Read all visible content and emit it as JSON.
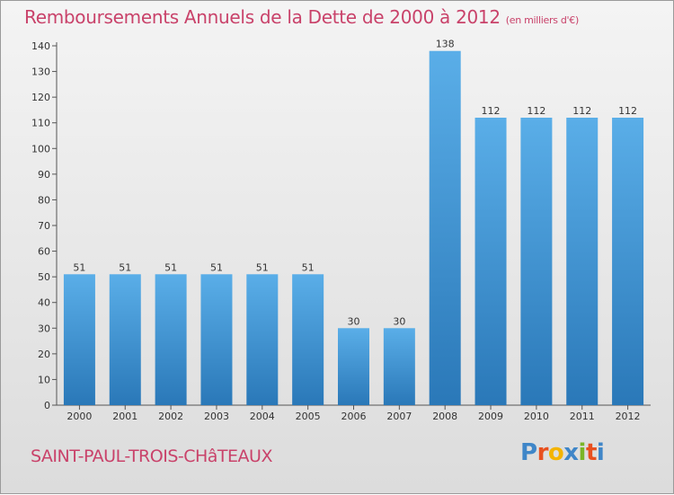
{
  "header": {
    "title": "Remboursements Annuels de la Dette de 2000 à 2012",
    "unit": "(en milliers d'€)"
  },
  "commune": "SAINT-PAUL-TROIS-CHâTEAUX",
  "logo": {
    "letters": [
      "P",
      "r",
      "o",
      "x",
      "i",
      "t",
      "i"
    ]
  },
  "colors": {
    "title": "#c9426a",
    "bar_top": "#5aaee8",
    "bar_bottom": "#2a78b8",
    "logo_letters": [
      "#3f86c8",
      "#e8501f",
      "#f4b400",
      "#3f86c8",
      "#7ab526",
      "#e8501f",
      "#3f86c8"
    ]
  },
  "chart_data": {
    "type": "bar",
    "title": "Remboursements Annuels de la Dette de 2000 à 2012",
    "categories": [
      "2000",
      "2001",
      "2002",
      "2003",
      "2004",
      "2005",
      "2006",
      "2007",
      "2008",
      "2009",
      "2010",
      "2011",
      "2012"
    ],
    "values": [
      51,
      51,
      51,
      51,
      51,
      51,
      30,
      30,
      138,
      112,
      112,
      112,
      112
    ],
    "ylim": [
      0,
      140
    ],
    "yticks": [
      0,
      10,
      20,
      30,
      40,
      50,
      60,
      70,
      80,
      90,
      100,
      110,
      120,
      130,
      140
    ],
    "grid": false,
    "data_labels": true
  }
}
